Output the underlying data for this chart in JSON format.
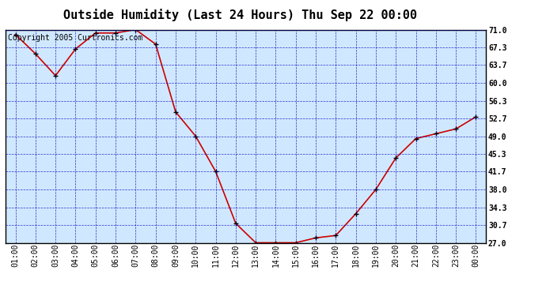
{
  "title": "Outside Humidity (Last 24 Hours) Thu Sep 22 00:00",
  "copyright": "Copyright 2005 Curtronics.com",
  "x_labels": [
    "01:00",
    "02:00",
    "03:00",
    "04:00",
    "05:00",
    "06:00",
    "07:00",
    "08:00",
    "09:00",
    "10:00",
    "11:00",
    "12:00",
    "13:00",
    "14:00",
    "15:00",
    "16:00",
    "17:00",
    "18:00",
    "19:00",
    "20:00",
    "21:00",
    "22:00",
    "23:00",
    "00:00"
  ],
  "x_values": [
    1,
    2,
    3,
    4,
    5,
    6,
    7,
    8,
    9,
    10,
    11,
    12,
    13,
    14,
    15,
    16,
    17,
    18,
    19,
    20,
    21,
    22,
    23,
    24
  ],
  "y_values": [
    70.0,
    66.0,
    61.5,
    67.0,
    70.3,
    70.3,
    71.0,
    68.0,
    54.0,
    49.0,
    41.7,
    31.0,
    27.0,
    27.0,
    27.0,
    28.0,
    28.5,
    33.0,
    38.0,
    44.5,
    48.5,
    49.5,
    50.5,
    53.0
  ],
  "yticks": [
    27.0,
    30.7,
    34.3,
    38.0,
    41.7,
    45.3,
    49.0,
    52.7,
    56.3,
    60.0,
    63.7,
    67.3,
    71.0
  ],
  "ylim": [
    27.0,
    71.0
  ],
  "line_color": "#cc0000",
  "marker_color": "#000000",
  "bg_color": "#d0e8ff",
  "grid_color": "#0000bb",
  "border_color": "#000000",
  "title_fontsize": 11,
  "copyright_fontsize": 7,
  "tick_fontsize": 7,
  "marker_size": 4
}
